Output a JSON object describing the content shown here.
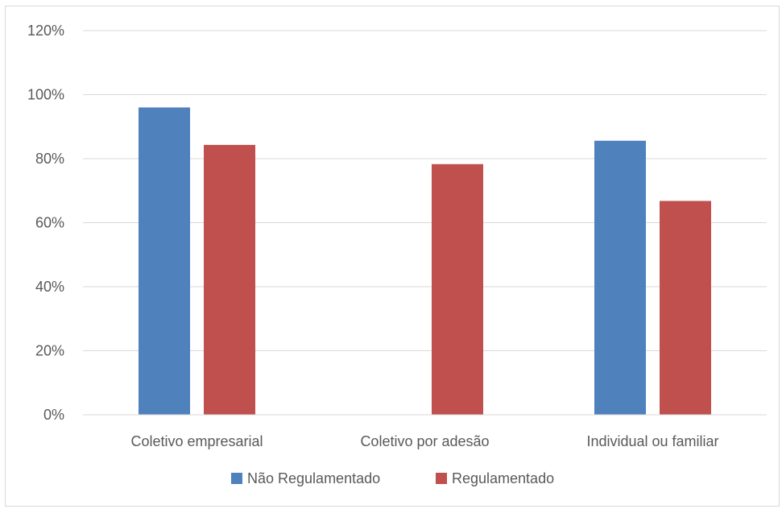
{
  "chart_data": {
    "type": "bar",
    "categories": [
      "Coletivo empresarial",
      "Coletivo por adesão",
      "Individual ou familiar"
    ],
    "series": [
      {
        "name": "Não Regulamentado",
        "color": "#4f81bd",
        "values": [
          0.96,
          null,
          0.856
        ]
      },
      {
        "name": "Regulamentado",
        "color": "#c0504d",
        "values": [
          0.843,
          0.783,
          0.668
        ]
      }
    ],
    "yticks": [
      "0%",
      "20%",
      "40%",
      "60%",
      "80%",
      "100%",
      "120%"
    ],
    "ylim": [
      0,
      1.2
    ],
    "grid": true,
    "legend_position": "bottom"
  }
}
